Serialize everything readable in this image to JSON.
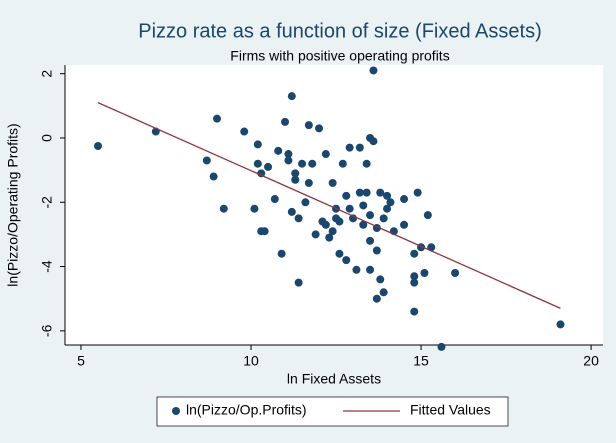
{
  "chart_data": {
    "type": "scatter",
    "title": "Pizzo rate as a function of size (Fixed Assets)",
    "subtitle": "Firms with positive operating profits",
    "x_label": "ln Fixed Assets",
    "y_label": "ln(Pizzo/Operating Profits)",
    "xlim": [
      4.53,
      20.35
    ],
    "xticks": [
      5,
      10,
      15,
      20
    ],
    "ylim": [
      -6.44,
      2.27
    ],
    "yticks": [
      -6,
      -4,
      -2,
      0,
      2
    ],
    "grid": false,
    "legend": "bottom",
    "series": [
      {
        "name": "ln(Pizzo/Op.Profits)",
        "color": "#1a476f",
        "type": "scatter",
        "x": [
          5.5,
          7.2,
          8.7,
          8.9,
          9.0,
          9.2,
          9.8,
          10.1,
          10.2,
          10.2,
          10.3,
          10.3,
          10.4,
          10.5,
          10.7,
          10.8,
          10.9,
          11.0,
          11.1,
          11.1,
          11.2,
          11.2,
          11.3,
          11.3,
          11.4,
          11.4,
          11.5,
          11.6,
          11.7,
          11.7,
          11.8,
          11.9,
          12.0,
          12.1,
          12.2,
          12.2,
          12.3,
          12.4,
          12.4,
          12.5,
          12.5,
          12.6,
          12.6,
          12.7,
          12.8,
          12.8,
          12.9,
          12.9,
          13.0,
          13.1,
          13.2,
          13.2,
          13.3,
          13.3,
          13.4,
          13.4,
          13.5,
          13.5,
          13.5,
          13.5,
          13.6,
          13.6,
          13.7,
          13.7,
          13.7,
          13.8,
          13.8,
          13.9,
          13.9,
          14.0,
          14.0,
          14.1,
          14.2,
          14.5,
          14.5,
          14.8,
          14.8,
          14.8,
          14.8,
          14.9,
          15.0,
          15.1,
          15.2,
          15.3,
          15.6,
          16.0,
          19.1
        ],
        "values": [
          -0.25,
          0.2,
          -0.7,
          -1.2,
          0.6,
          -2.2,
          0.2,
          -2.2,
          -0.8,
          -0.2,
          -1.1,
          -2.9,
          -2.9,
          -0.9,
          -1.9,
          -0.4,
          -3.6,
          0.5,
          -0.5,
          -0.7,
          1.3,
          -2.3,
          -1.1,
          -1.3,
          -2.5,
          -4.5,
          -0.8,
          -2.0,
          0.4,
          -1.4,
          -0.8,
          -3.0,
          0.3,
          -2.6,
          -0.5,
          -2.7,
          -3.1,
          -2.9,
          -1.4,
          -2.2,
          -2.5,
          -3.6,
          -2.6,
          -0.8,
          -1.8,
          -3.8,
          -0.3,
          -2.2,
          -2.5,
          -4.1,
          -0.3,
          -1.7,
          -2.1,
          -2.7,
          -1.7,
          -0.8,
          -2.4,
          -3.2,
          0.0,
          -4.1,
          2.1,
          -0.1,
          -2.8,
          -3.5,
          -5.0,
          -1.7,
          -4.4,
          -2.5,
          -4.8,
          -1.8,
          -2.2,
          -2.0,
          -2.9,
          -2.7,
          -1.9,
          -3.6,
          -4.3,
          -4.5,
          -5.4,
          -1.7,
          -3.4,
          -4.2,
          -2.4,
          -3.4,
          -6.5,
          -4.2,
          -5.8
        ]
      },
      {
        "name": "Fitted Values",
        "color": "#90353b",
        "type": "line",
        "x": [
          5.5,
          19.1
        ],
        "values": [
          1.1,
          -5.3
        ]
      }
    ]
  }
}
